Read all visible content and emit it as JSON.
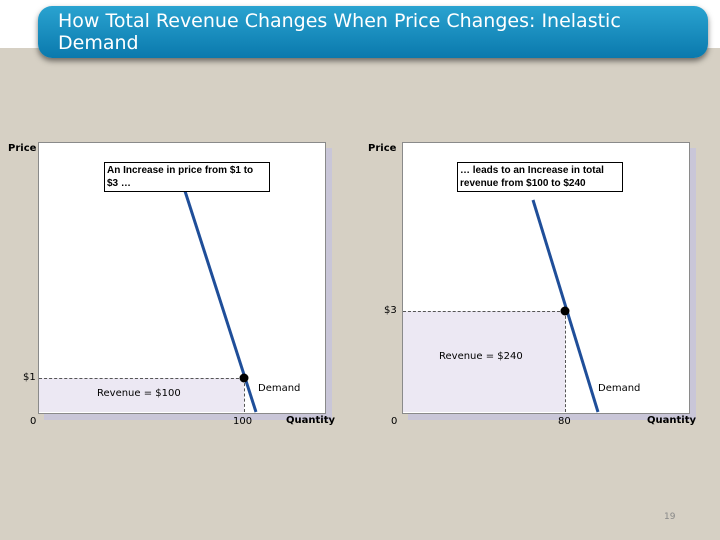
{
  "slide": {
    "title": "How Total Revenue Changes When Price Changes: Inelastic Demand",
    "page_number": "19"
  },
  "left_panel": {
    "y_axis_label": "Price",
    "x_axis_label": "Quantity",
    "origin_label": "0",
    "price_tick": "$1",
    "quantity_tick": "100",
    "callout": "An Increase in price from $1 to $3 …",
    "revenue_label": "Revenue =  $100",
    "demand_label": "Demand"
  },
  "right_panel": {
    "y_axis_label": "Price",
    "x_axis_label": "Quantity",
    "origin_label": "0",
    "price_tick": "$3",
    "quantity_tick": "80",
    "callout": "… leads to an Increase in total revenue from $100 to $240",
    "revenue_label": "Revenue = $240",
    "demand_label": "Demand"
  },
  "colors": {
    "demand_line": "#1f4e99",
    "revenue_fill": "#ece8f3",
    "banner": "#0a79ad"
  }
}
